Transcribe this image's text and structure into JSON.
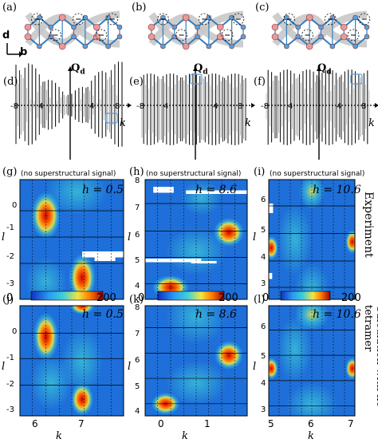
{
  "figure": {
    "structure_panels": [
      {
        "label": "(a)"
      },
      {
        "label": "(b)"
      },
      {
        "label": "(c)"
      }
    ],
    "axis_d": "d",
    "axis_b": "b",
    "stick_panels": [
      {
        "label": "(d)",
        "q_label": "Q",
        "q_sub": "d",
        "k_label": "k",
        "ticks": [
          "-8",
          "4",
          "4",
          "8"
        ]
      },
      {
        "label": "(e)",
        "q_label": "Q",
        "q_sub": "d",
        "k_label": "k",
        "ticks": [
          "-8",
          "4",
          "4",
          "8"
        ]
      },
      {
        "label": "(f)",
        "q_label": "Q",
        "q_sub": "d",
        "k_label": "k",
        "ticks": [
          "-8",
          "4",
          "4",
          "8"
        ]
      }
    ],
    "exp_panels": [
      {
        "label": "(g)",
        "note": "(no superstructural signal)",
        "h": "h = 0.5",
        "yticks": [
          "0",
          "-1",
          "-2",
          "-3"
        ],
        "ylabel": "l"
      },
      {
        "label": "(h)",
        "note": "(no superstructural signal)",
        "h": "h = 8.6",
        "yticks": [
          "8",
          "7",
          "6",
          "5",
          "4"
        ],
        "ylabel": "l"
      },
      {
        "label": "(i)",
        "note": "(no superstructural signal)",
        "h": "h = 10.6",
        "yticks": [
          "6",
          "5",
          "4",
          "3"
        ],
        "ylabel": "l"
      }
    ],
    "calc_panels": [
      {
        "label": "(j)",
        "h": "h = 0.5",
        "yticks": [
          "0",
          "-1",
          "-2",
          "-3"
        ],
        "xticks": [
          "6",
          "7"
        ],
        "ylabel": "l",
        "xlabel": "k"
      },
      {
        "label": "(k)",
        "h": "h = 8.6",
        "yticks": [
          "8",
          "7",
          "6",
          "5",
          "4"
        ],
        "xticks": [
          "0",
          "1"
        ],
        "ylabel": "l",
        "xlabel": "k"
      },
      {
        "label": "(l)",
        "h": "h = 10.6",
        "yticks": [
          "6",
          "5",
          "4",
          "3"
        ],
        "xticks": [
          "5",
          "6",
          "7"
        ],
        "ylabel": "l",
        "xlabel": "k"
      }
    ],
    "colorbar": {
      "min": "0",
      "max": "200"
    },
    "side_labels": {
      "experiment": "Experiment",
      "calculation": "Calculation with no tetramer"
    },
    "colors": {
      "background": "#1e6fd9",
      "hot": "#c80000",
      "warm": "#f2e640",
      "mid": "#3fd0d8"
    }
  }
}
